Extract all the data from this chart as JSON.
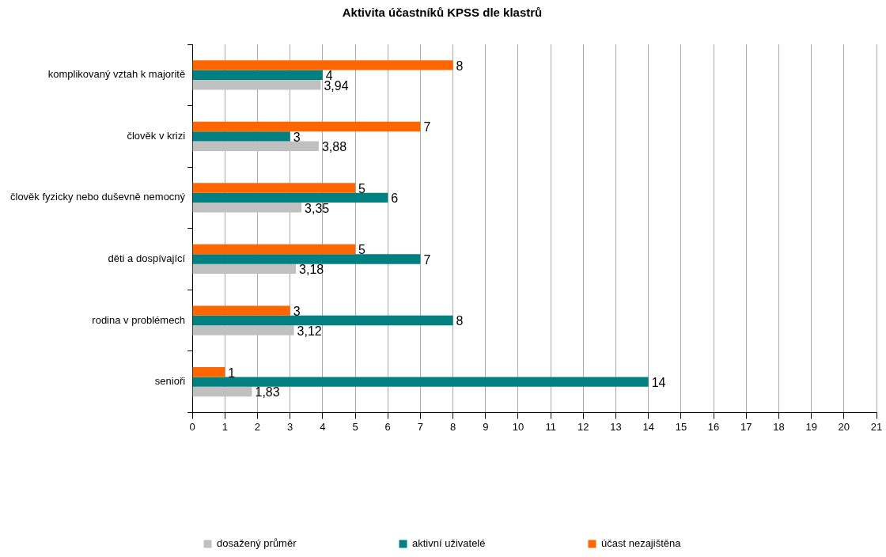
{
  "chart_data": {
    "type": "bar",
    "orientation": "horizontal",
    "title": "Aktivita účastníků KPSS dle klastrů",
    "categories": [
      "komplikovaný vztah k majoritě",
      "člověk v krizi",
      "člověk fyzicky nebo duševně nemocný",
      "děti a dospívající",
      "rodina v problémech",
      "senioři"
    ],
    "series": [
      {
        "name": "dosažený průměr",
        "color": "#c0c0c0",
        "values": [
          3.94,
          3.88,
          3.35,
          3.18,
          3.12,
          1.83
        ],
        "value_labels": [
          "3,94",
          "3,88",
          "3,35",
          "3,18",
          "3,12",
          "1,83"
        ]
      },
      {
        "name": "aktivní uživatelé",
        "color": "#008080",
        "values": [
          4,
          3,
          6,
          7,
          8,
          14
        ],
        "value_labels": [
          "4",
          "3",
          "6",
          "7",
          "8",
          "14"
        ]
      },
      {
        "name": "účast nezajištěna",
        "color": "#ff6600",
        "values": [
          8,
          7,
          5,
          5,
          3,
          1
        ],
        "value_labels": [
          "8",
          "7",
          "5",
          "5",
          "3",
          "1"
        ]
      }
    ],
    "xlim": [
      0,
      21
    ],
    "xticks": [
      0,
      1,
      2,
      3,
      4,
      5,
      6,
      7,
      8,
      9,
      10,
      11,
      12,
      13,
      14,
      15,
      16,
      17,
      18,
      19,
      20,
      21
    ],
    "grid": "x",
    "legend": "bottom"
  }
}
